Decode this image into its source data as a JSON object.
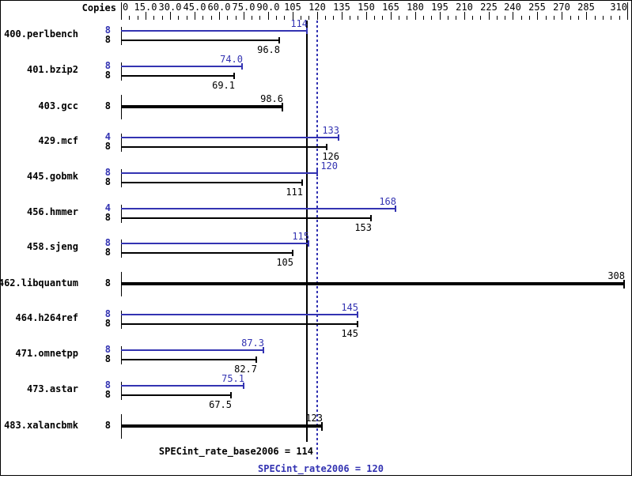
{
  "chart_data": {
    "type": "bar",
    "orientation": "horizontal",
    "copies_header": "Copies",
    "axis": {
      "min": 0,
      "max": 310,
      "minor_step": 5,
      "major_step": 15,
      "tick_values": [
        0,
        15,
        30,
        45,
        60,
        75,
        90,
        105,
        120,
        135,
        150,
        165,
        180,
        195,
        210,
        225,
        240,
        255,
        270,
        285,
        310
      ],
      "tick_labels": [
        "0",
        "15.0",
        "30.0",
        "45.0",
        "60.0",
        "75.0",
        "90.0",
        "105",
        "120",
        "135",
        "150",
        "165",
        "180",
        "195",
        "210",
        "225",
        "240",
        "255",
        "270",
        "285",
        "310"
      ],
      "position": "top"
    },
    "colors": {
      "peak": "#3333b2",
      "base": "#000000"
    },
    "benchmarks": [
      {
        "name": "400.perlbench",
        "peak": {
          "copies": 8,
          "value": 114,
          "label": "114"
        },
        "base": {
          "copies": 8,
          "value": 96.8,
          "label": "96.8"
        }
      },
      {
        "name": "401.bzip2",
        "peak": {
          "copies": 8,
          "value": 74.0,
          "label": "74.0"
        },
        "base": {
          "copies": 8,
          "value": 69.1,
          "label": "69.1"
        }
      },
      {
        "name": "403.gcc",
        "single": true,
        "base": {
          "copies": 8,
          "value": 98.6,
          "label": "98.6"
        }
      },
      {
        "name": "429.mcf",
        "peak": {
          "copies": 4,
          "value": 133,
          "label": "133"
        },
        "base": {
          "copies": 8,
          "value": 126,
          "label": "126",
          "label_dx": 15
        }
      },
      {
        "name": "445.gobmk",
        "peak": {
          "copies": 8,
          "value": 120,
          "label": "120",
          "label_dx": 25
        },
        "base": {
          "copies": 8,
          "value": 111,
          "label": "111"
        }
      },
      {
        "name": "456.hmmer",
        "peak": {
          "copies": 4,
          "value": 168,
          "label": "168"
        },
        "base": {
          "copies": 8,
          "value": 153,
          "label": "153"
        }
      },
      {
        "name": "458.sjeng",
        "peak": {
          "copies": 8,
          "value": 115,
          "label": "115"
        },
        "base": {
          "copies": 8,
          "value": 105,
          "label": "105"
        }
      },
      {
        "name": "462.libquantum",
        "single": true,
        "base": {
          "copies": 8,
          "value": 308,
          "label": "308"
        }
      },
      {
        "name": "464.h264ref",
        "peak": {
          "copies": 8,
          "value": 145,
          "label": "145"
        },
        "base": {
          "copies": 8,
          "value": 145,
          "label": "145"
        }
      },
      {
        "name": "471.omnetpp",
        "peak": {
          "copies": 8,
          "value": 87.3,
          "label": "87.3"
        },
        "base": {
          "copies": 8,
          "value": 82.7,
          "label": "82.7"
        }
      },
      {
        "name": "473.astar",
        "peak": {
          "copies": 8,
          "value": 75.1,
          "label": "75.1"
        },
        "base": {
          "copies": 8,
          "value": 67.5,
          "label": "67.5"
        }
      },
      {
        "name": "483.xalancbmk",
        "single": true,
        "base": {
          "copies": 8,
          "value": 123,
          "label": "123"
        }
      }
    ],
    "reference_lines": [
      {
        "name": "base",
        "label": "SPECint_rate_base2006 = 114",
        "value": 114,
        "style": "solid",
        "color": "#000000"
      },
      {
        "name": "peak",
        "label": "SPECint_rate2006 = 120",
        "value": 120,
        "style": "dotted",
        "color": "#3333b2"
      }
    ]
  }
}
